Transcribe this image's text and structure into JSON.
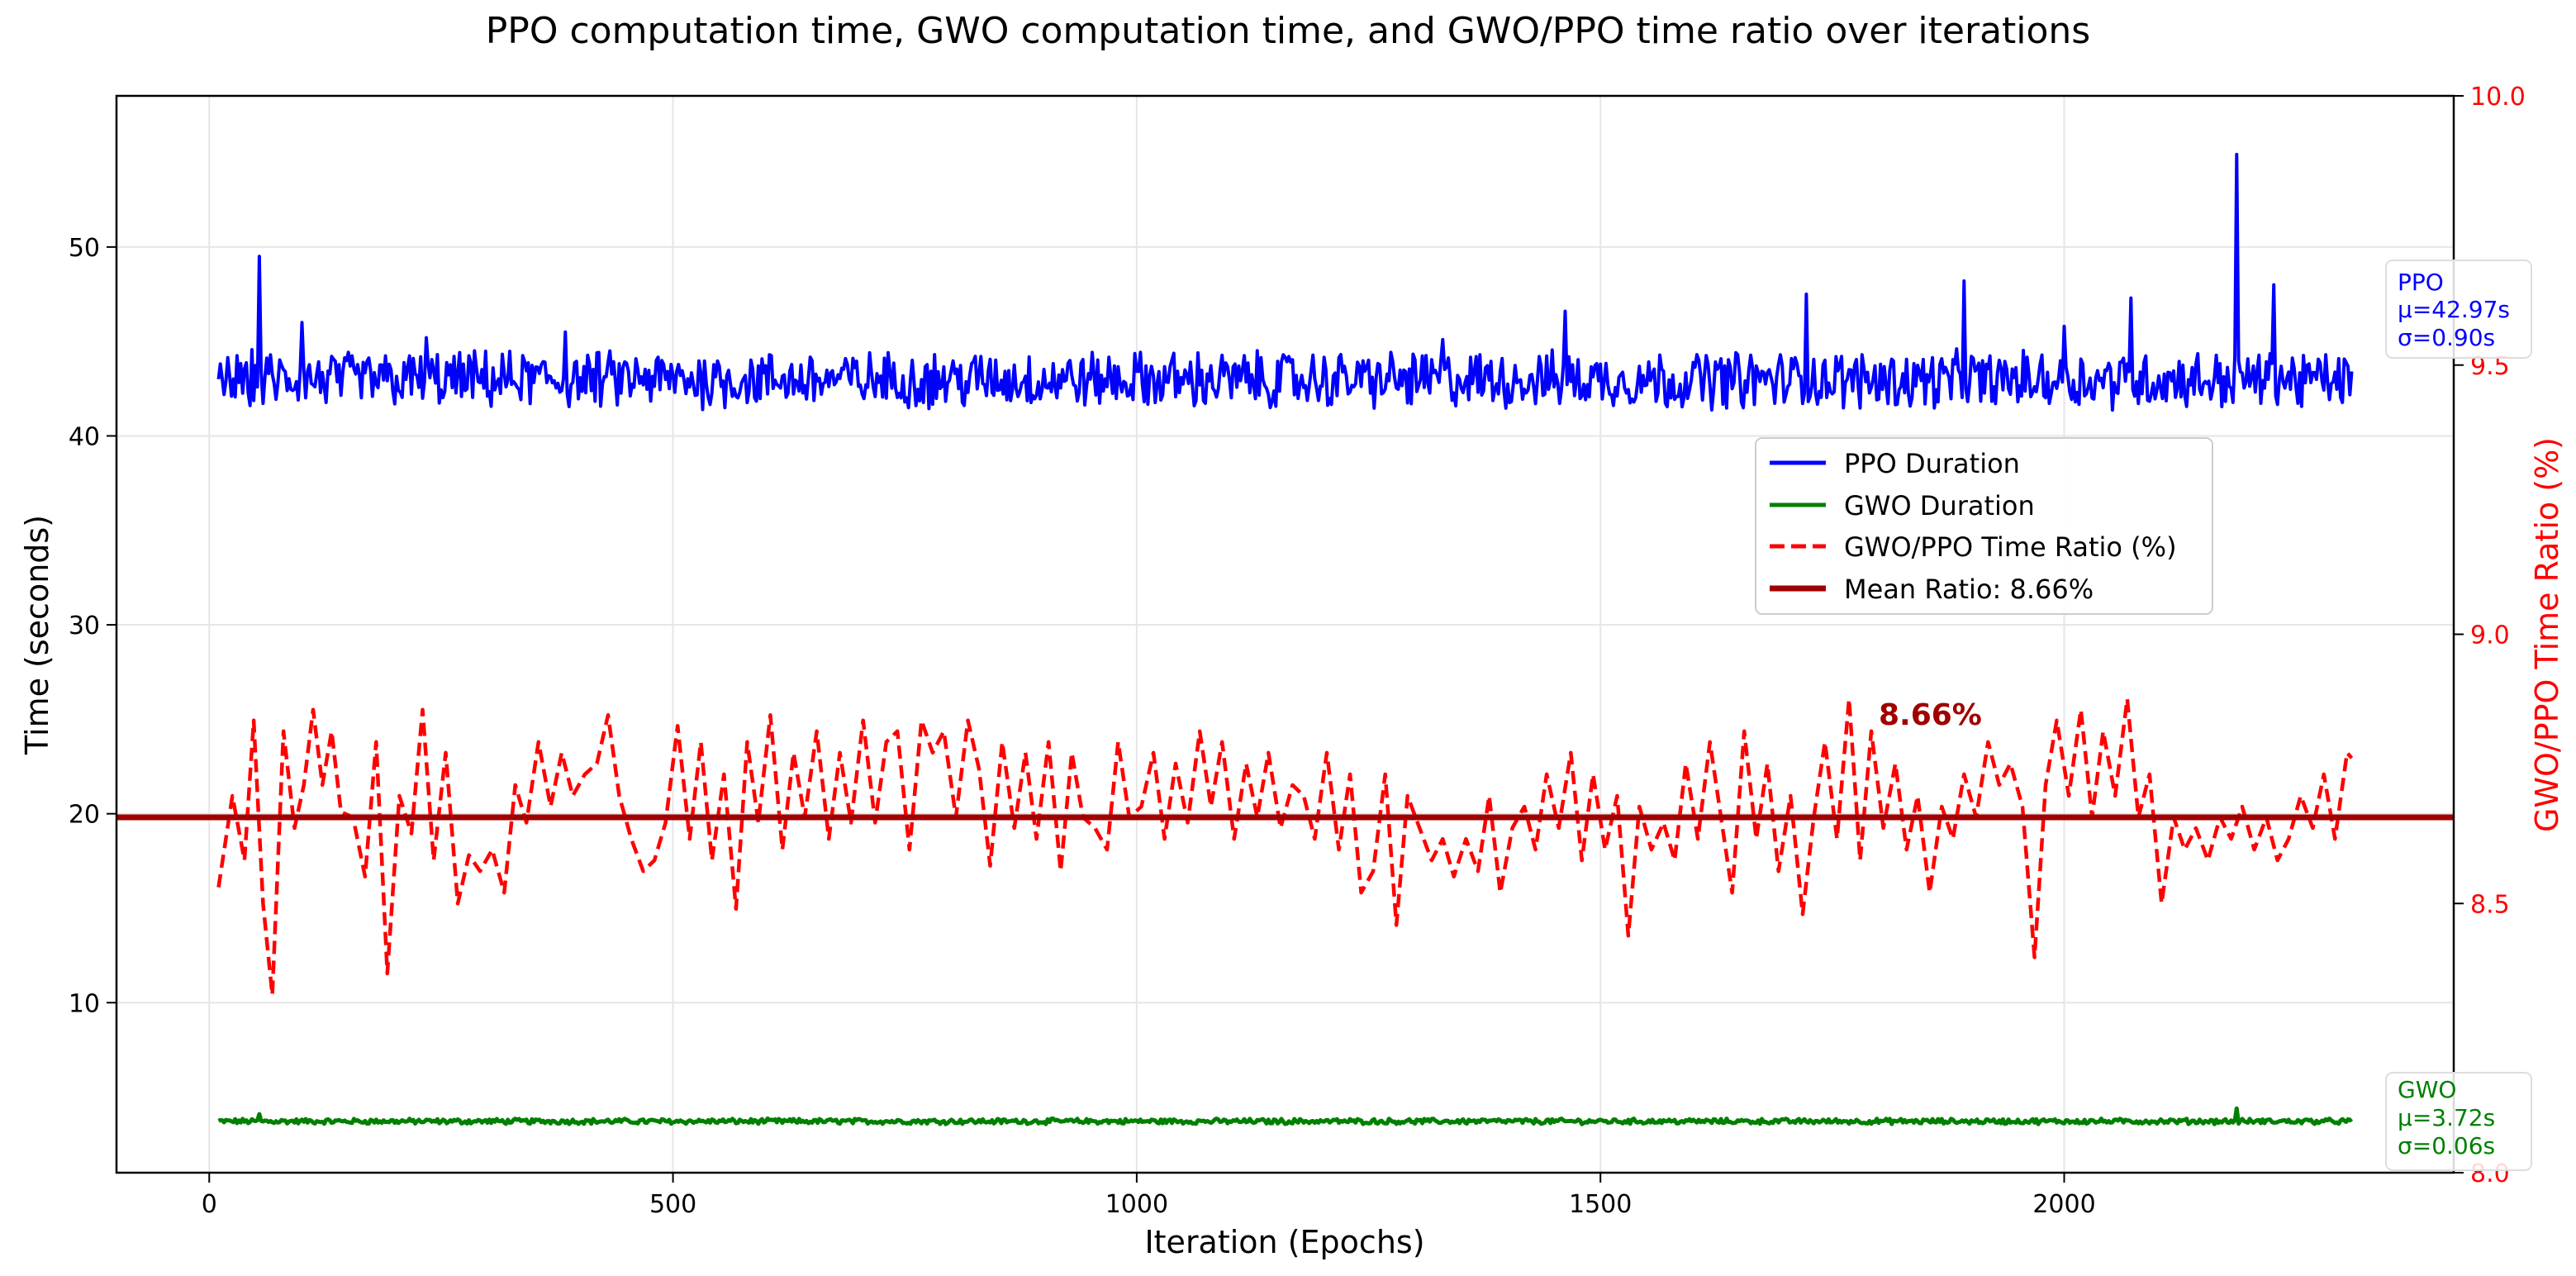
{
  "chart_data": {
    "type": "line",
    "title": "PPO computation time, GWO computation time, and GWO/PPO time ratio over iterations",
    "xlabel": "Iteration (Epochs)",
    "ylabel": "Time (seconds)",
    "ylabel_right": "GWO/PPO Time Ratio (%)",
    "xlim": [
      -100,
      2420
    ],
    "ylim": [
      1,
      58
    ],
    "ylim_right": [
      8.0,
      10.0
    ],
    "x_ticks": [
      0,
      500,
      1000,
      1500,
      2000
    ],
    "y_ticks": [
      10,
      20,
      30,
      40,
      50
    ],
    "y_ticks_right": [
      8.0,
      8.5,
      9.0,
      9.5,
      10.0
    ],
    "y_tick_labels_right": [
      "8.0",
      "8.5",
      "9.0",
      "9.5",
      "10.0"
    ],
    "grid": true,
    "legend_position": "center-right",
    "colors": {
      "ppo": "#0000ff",
      "gwo": "#008000",
      "ratio": "#ff0000",
      "mean": "#a00000",
      "grid": "#e6e6e6"
    },
    "series": [
      {
        "name": "PPO Duration",
        "axis": "left",
        "style": "solid",
        "x_start": 10,
        "x_end": 2310,
        "mean": 42.97,
        "spikes": [
          [
            55,
            49.5
          ],
          [
            100,
            46.0
          ],
          [
            235,
            45.2
          ],
          [
            385,
            45.5
          ],
          [
            1463,
            46.6
          ],
          [
            1722,
            47.5
          ],
          [
            1892,
            48.2
          ],
          [
            2072,
            47.3
          ],
          [
            2187,
            54.9
          ],
          [
            2227,
            48.0
          ],
          [
            2000,
            45.8
          ],
          [
            1330,
            45.1
          ]
        ]
      },
      {
        "name": "GWO Duration",
        "axis": "left",
        "style": "solid",
        "x_start": 10,
        "x_end": 2310,
        "mean": 3.72,
        "spikes": [
          [
            55,
            4.1
          ],
          [
            2187,
            4.4
          ]
        ]
      },
      {
        "name": "GWO/PPO Time Ratio (%)",
        "axis": "right",
        "style": "dashed",
        "x": [
          10,
          25,
          38,
          48,
          58,
          68,
          80,
          92,
          102,
          112,
          122,
          132,
          142,
          155,
          168,
          180,
          192,
          205,
          218,
          230,
          242,
          255,
          268,
          280,
          292,
          305,
          318,
          330,
          342,
          355,
          368,
          380,
          392,
          405,
          418,
          430,
          442,
          455,
          468,
          480,
          492,
          505,
          518,
          530,
          542,
          555,
          568,
          580,
          592,
          605,
          618,
          630,
          642,
          655,
          668,
          680,
          692,
          705,
          718,
          730,
          742,
          755,
          768,
          780,
          792,
          805,
          818,
          830,
          842,
          855,
          868,
          880,
          892,
          905,
          918,
          930,
          942,
          955,
          968,
          980,
          992,
          1005,
          1018,
          1030,
          1042,
          1055,
          1068,
          1080,
          1092,
          1105,
          1118,
          1130,
          1142,
          1155,
          1168,
          1180,
          1192,
          1205,
          1218,
          1230,
          1242,
          1255,
          1268,
          1280,
          1292,
          1305,
          1318,
          1330,
          1342,
          1355,
          1368,
          1380,
          1392,
          1405,
          1418,
          1430,
          1442,
          1455,
          1468,
          1480,
          1492,
          1505,
          1518,
          1530,
          1542,
          1555,
          1568,
          1580,
          1592,
          1605,
          1618,
          1630,
          1642,
          1655,
          1668,
          1680,
          1692,
          1705,
          1718,
          1730,
          1742,
          1755,
          1768,
          1780,
          1792,
          1805,
          1818,
          1830,
          1842,
          1855,
          1868,
          1880,
          1892,
          1905,
          1918,
          1930,
          1942,
          1955,
          1968,
          1980,
          1992,
          2005,
          2018,
          2030,
          2042,
          2055,
          2068,
          2080,
          2092,
          2105,
          2118,
          2130,
          2142,
          2155,
          2168,
          2180,
          2192,
          2205,
          2218,
          2230,
          2242,
          2255,
          2268,
          2280,
          2292,
          2305,
          2310
        ],
        "values": [
          8.53,
          8.7,
          8.58,
          8.84,
          8.5,
          8.33,
          8.82,
          8.64,
          8.72,
          8.86,
          8.72,
          8.82,
          8.67,
          8.66,
          8.55,
          8.8,
          8.37,
          8.7,
          8.63,
          8.86,
          8.58,
          8.78,
          8.5,
          8.59,
          8.56,
          8.6,
          8.52,
          8.72,
          8.65,
          8.8,
          8.68,
          8.78,
          8.7,
          8.74,
          8.76,
          8.85,
          8.7,
          8.62,
          8.56,
          8.58,
          8.65,
          8.83,
          8.62,
          8.8,
          8.58,
          8.74,
          8.49,
          8.8,
          8.65,
          8.85,
          8.6,
          8.78,
          8.66,
          8.82,
          8.62,
          8.78,
          8.65,
          8.84,
          8.65,
          8.8,
          8.82,
          8.6,
          8.84,
          8.78,
          8.82,
          8.66,
          8.84,
          8.75,
          8.57,
          8.8,
          8.64,
          8.78,
          8.62,
          8.8,
          8.56,
          8.78,
          8.66,
          8.64,
          8.6,
          8.8,
          8.66,
          8.68,
          8.78,
          8.62,
          8.76,
          8.65,
          8.82,
          8.68,
          8.8,
          8.62,
          8.76,
          8.66,
          8.78,
          8.64,
          8.72,
          8.7,
          8.62,
          8.78,
          8.6,
          8.74,
          8.52,
          8.56,
          8.74,
          8.46,
          8.7,
          8.64,
          8.58,
          8.62,
          8.55,
          8.62,
          8.56,
          8.7,
          8.52,
          8.64,
          8.68,
          8.6,
          8.74,
          8.64,
          8.78,
          8.58,
          8.74,
          8.6,
          8.7,
          8.44,
          8.68,
          8.6,
          8.65,
          8.58,
          8.76,
          8.62,
          8.8,
          8.66,
          8.52,
          8.82,
          8.62,
          8.76,
          8.56,
          8.7,
          8.48,
          8.66,
          8.8,
          8.62,
          8.88,
          8.58,
          8.82,
          8.64,
          8.76,
          8.6,
          8.7,
          8.52,
          8.68,
          8.62,
          8.74,
          8.66,
          8.8,
          8.72,
          8.76,
          8.68,
          8.4,
          8.72,
          8.84,
          8.7,
          8.86,
          8.66,
          8.82,
          8.7,
          8.88,
          8.66,
          8.74,
          8.5,
          8.66,
          8.6,
          8.64,
          8.58,
          8.66,
          8.62,
          8.68,
          8.6,
          8.66,
          8.58,
          8.62,
          8.7,
          8.64,
          8.74,
          8.62,
          8.78,
          8.77
        ]
      },
      {
        "name": "Mean Ratio: 8.66%",
        "axis": "right",
        "style": "solid-thick",
        "value": 8.66
      }
    ],
    "legend": [
      "PPO Duration",
      "GWO Duration",
      "GWO/PPO Time Ratio (%)",
      "Mean Ratio: 8.66%"
    ],
    "annotation": "8.66%",
    "annotation_at": [
      1800,
      8.85
    ],
    "stats_boxes": [
      {
        "lines": [
          "PPO",
          "μ=42.97s",
          "σ=0.90s"
        ],
        "color": "#0000ff"
      },
      {
        "lines": [
          "GWO",
          "μ=3.72s",
          "σ=0.06s"
        ],
        "color": "#008000"
      }
    ]
  }
}
